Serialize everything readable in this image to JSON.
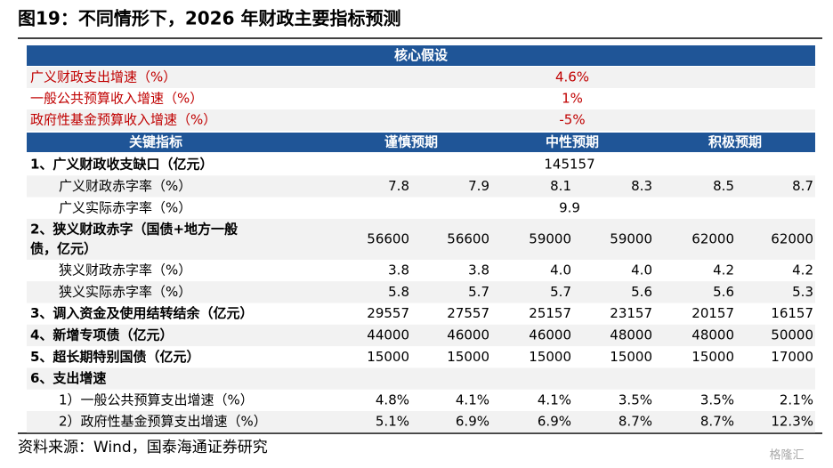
{
  "header": {
    "title": "图19：不同情形下，2026 年财政主要指标预测"
  },
  "table": {
    "section_header": "核心假设",
    "assumptions": [
      {
        "label": "广义财政支出增速（%）",
        "value": "4.6%"
      },
      {
        "label": "一般公共预算收入增速（%）",
        "value": "1%"
      },
      {
        "label": "政府性基金预算收入增速（%）",
        "value": "-5%"
      }
    ],
    "columns": [
      "关键指标",
      "谨慎预期",
      "中性预期",
      "积极预期"
    ],
    "rows": [
      {
        "label": [
          "1、广义财政收支缺口（亿元）"
        ],
        "values": [
          "145157"
        ]
      },
      {
        "label": [
          "广义财政赤字率（%）"
        ],
        "values": [
          "7.8",
          "7.9",
          "8.1",
          "8.3",
          "8.5",
          "8.7"
        ]
      },
      {
        "label": [
          "广义实际赤字率（%）"
        ],
        "values": [
          "9.9"
        ]
      },
      {
        "label": [
          "2、狭义财政赤字（国债+地方一般",
          "债，亿元）"
        ],
        "values": [
          "56600",
          "56600",
          "59000",
          "59000",
          "62000",
          "62000"
        ]
      },
      {
        "label": [
          "狭义财政赤字率（%）"
        ],
        "values": [
          "3.8",
          "3.8",
          "4.0",
          "4.0",
          "4.2",
          "4.2"
        ]
      },
      {
        "label": [
          "狭义实际赤字率（%）"
        ],
        "values": [
          "5.8",
          "5.7",
          "5.7",
          "5.6",
          "5.6",
          "5.3"
        ]
      },
      {
        "label": [
          "3、调入资金及使用结转结余（亿元）"
        ],
        "values": [
          "29557",
          "27557",
          "25157",
          "23157",
          "20157",
          "16157"
        ]
      },
      {
        "label": [
          "4、新增专项债（亿元）"
        ],
        "values": [
          "44000",
          "46000",
          "46000",
          "48000",
          "48000",
          "50000"
        ]
      },
      {
        "label": [
          "5、超长期特别国债（亿元）"
        ],
        "values": [
          "15000",
          "15000",
          "15000",
          "15000",
          "15000",
          "17000"
        ]
      },
      {
        "label": [
          "6、支出增速"
        ],
        "values": []
      },
      {
        "label": [
          "1）一般公共预算支出增速（%）"
        ],
        "values": [
          "4.8%",
          "4.1%",
          "4.1%",
          "3.5%",
          "3.5%",
          "2.1%"
        ]
      },
      {
        "label": [
          "2）政府性基金预算支出增速（%）"
        ],
        "values": [
          "5.1%",
          "6.9%",
          "6.9%",
          "8.7%",
          "8.7%",
          "12.3%"
        ]
      }
    ]
  },
  "footer": {
    "source": "资料来源：Wind，国泰海通证券研究",
    "watermark": "格隆汇"
  }
}
